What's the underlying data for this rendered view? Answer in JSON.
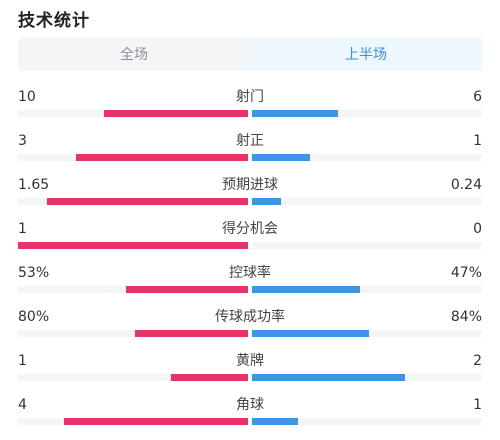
{
  "title": "技术统计",
  "tabs": [
    {
      "label": "全场",
      "active": false
    },
    {
      "label": "上半场",
      "active": true
    }
  ],
  "colors": {
    "home": "#e8336a",
    "away": "#3e95e6",
    "active_tab": "#3a8fe3"
  },
  "stats": [
    {
      "label": "射门",
      "home": "10",
      "away": "6",
      "home_share": 0.625,
      "away_share": 0.375
    },
    {
      "label": "射正",
      "home": "3",
      "away": "1",
      "home_share": 0.75,
      "away_share": 0.25
    },
    {
      "label": "预期进球",
      "home": "1.65",
      "away": "0.24",
      "home_share": 0.873,
      "away_share": 0.127
    },
    {
      "label": "得分机会",
      "home": "1",
      "away": "0",
      "home_share": 1.0,
      "away_share": 0.0
    },
    {
      "label": "控球率",
      "home": "53%",
      "away": "47%",
      "home_share": 0.53,
      "away_share": 0.47
    },
    {
      "label": "传球成功率",
      "home": "80%",
      "away": "84%",
      "home_share": 0.49,
      "away_share": 0.51
    },
    {
      "label": "黄牌",
      "home": "1",
      "away": "2",
      "home_share": 0.333,
      "away_share": 0.667
    },
    {
      "label": "角球",
      "home": "4",
      "away": "1",
      "home_share": 0.8,
      "away_share": 0.2
    }
  ]
}
